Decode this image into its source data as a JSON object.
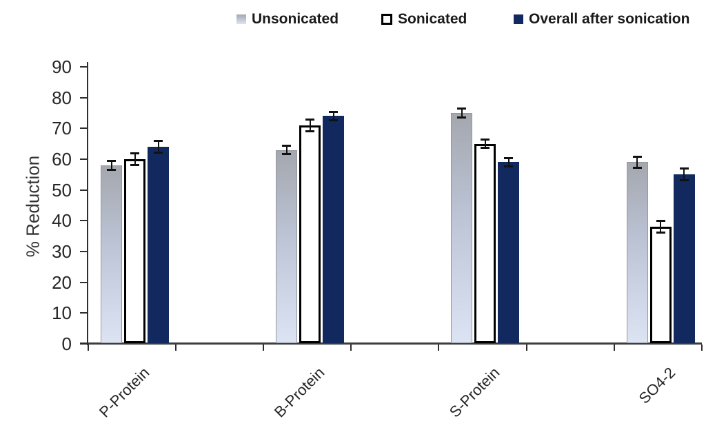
{
  "chart_data": {
    "type": "bar",
    "title": "",
    "ylabel": "% Reduction",
    "xlabel": "",
    "ylim": [
      0,
      90
    ],
    "ytick_step": 10,
    "yticks": [
      0,
      10,
      20,
      30,
      40,
      50,
      60,
      70,
      80,
      90
    ],
    "categories": [
      "P-Protein",
      "B-Protein",
      "S-Protein",
      "SO4-2"
    ],
    "series": [
      {
        "name": "Unsonicated",
        "values": [
          58,
          63,
          75,
          59
        ],
        "errors": [
          1.5,
          1.5,
          1.5,
          2
        ],
        "fill_gradient_top": "#a4a7ae",
        "fill_gradient_mid": "#bcc4d6",
        "fill_gradient_bottom": "#dce4f4",
        "border_color": "#94979f"
      },
      {
        "name": "Sonicated",
        "values": [
          60,
          71,
          65,
          38
        ],
        "errors": [
          2,
          2,
          1.5,
          2
        ],
        "fill": "#ffffff",
        "border_color": "#000000"
      },
      {
        "name": "Overall after sonication",
        "values": [
          64,
          74,
          59,
          55
        ],
        "errors": [
          2,
          1.5,
          1.5,
          2
        ],
        "fill": "#12295f"
      }
    ],
    "legend_position": "top",
    "grid": false,
    "error_bar_color": "#111111",
    "axis_color": "#3d3d3d",
    "text_color": "#262626",
    "background": "#ffffff"
  }
}
